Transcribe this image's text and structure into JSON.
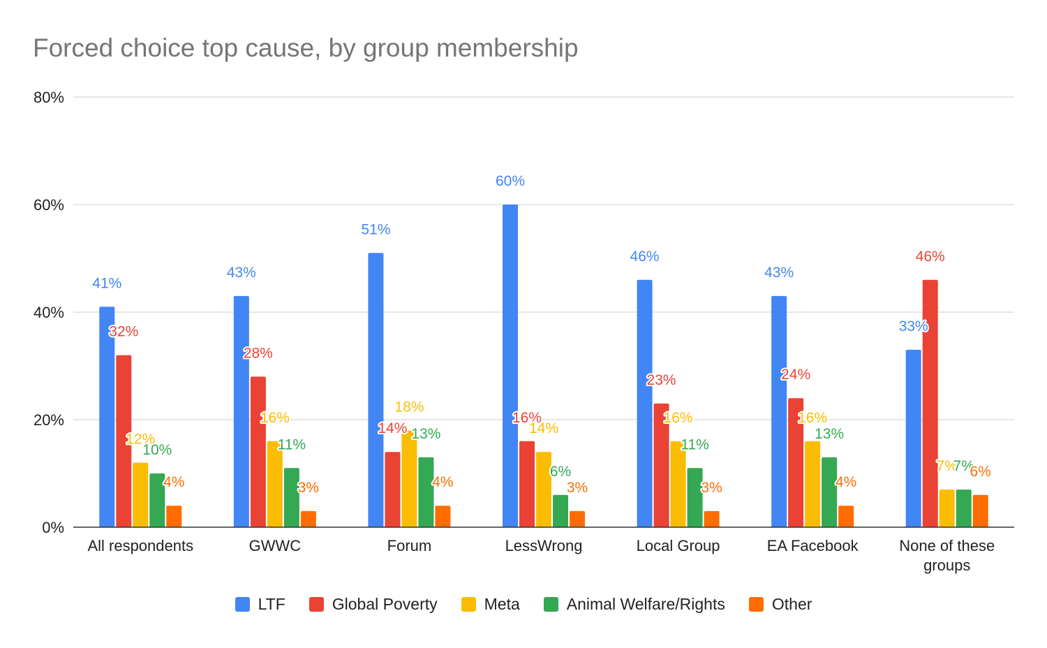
{
  "chart_data": {
    "type": "bar",
    "title": "Forced choice top cause, by group membership",
    "xlabel": "",
    "ylabel": "",
    "ylim": [
      0,
      80
    ],
    "yticks": [
      "0%",
      "20%",
      "40%",
      "60%",
      "80%"
    ],
    "grid": true,
    "legend_position": "bottom",
    "categories": [
      "All respondents",
      "GWWC",
      "Forum",
      "LessWrong",
      "Local Group",
      "EA Facebook",
      "None of these groups"
    ],
    "series": [
      {
        "name": "LTF",
        "color": "#4285F4",
        "values": [
          41,
          43,
          51,
          60,
          46,
          43,
          33
        ]
      },
      {
        "name": "Global Poverty",
        "color": "#EA4335",
        "values": [
          32,
          28,
          14,
          16,
          23,
          24,
          46
        ]
      },
      {
        "name": "Meta",
        "color": "#FBBC04",
        "values": [
          12,
          16,
          18,
          14,
          16,
          16,
          7
        ]
      },
      {
        "name": "Animal Welfare/Rights",
        "color": "#34A853",
        "values": [
          10,
          11,
          13,
          6,
          11,
          13,
          7
        ]
      },
      {
        "name": "Other",
        "color": "#FF6D01",
        "values": [
          4,
          3,
          4,
          3,
          3,
          4,
          6
        ]
      }
    ]
  }
}
